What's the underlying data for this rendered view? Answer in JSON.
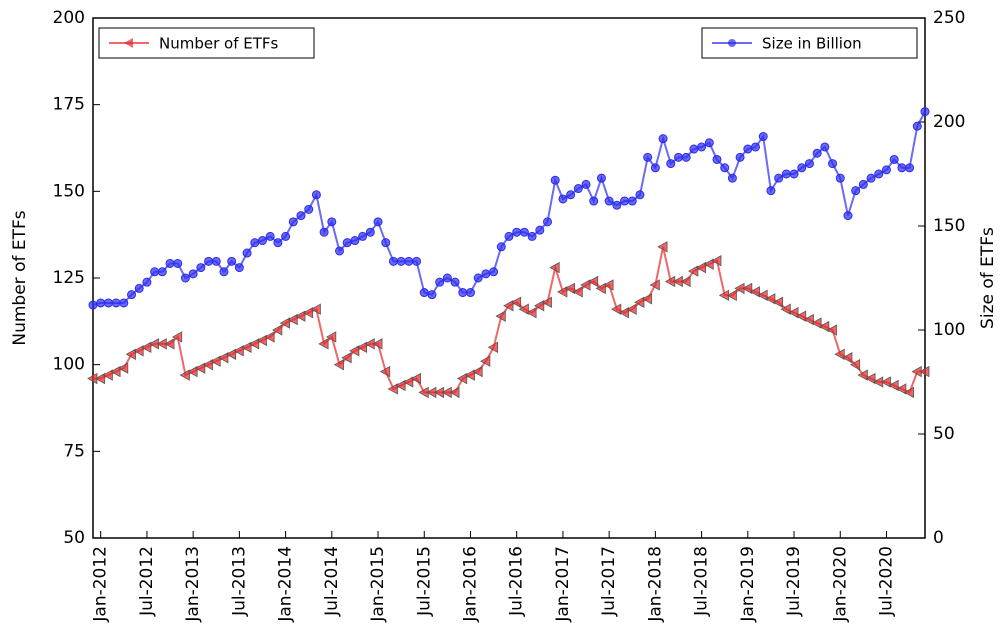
{
  "chart_data": {
    "type": "line",
    "x": [
      "2011-12",
      "2012-01",
      "2012-02",
      "2012-03",
      "2012-04",
      "2012-05",
      "2012-06",
      "2012-07",
      "2012-08",
      "2012-09",
      "2012-10",
      "2012-11",
      "2012-12",
      "2013-01",
      "2013-02",
      "2013-03",
      "2013-04",
      "2013-05",
      "2013-06",
      "2013-07",
      "2013-08",
      "2013-09",
      "2013-10",
      "2013-11",
      "2013-12",
      "2014-01",
      "2014-02",
      "2014-03",
      "2014-04",
      "2014-05",
      "2014-06",
      "2014-07",
      "2014-08",
      "2014-09",
      "2014-10",
      "2014-11",
      "2014-12",
      "2015-01",
      "2015-02",
      "2015-03",
      "2015-04",
      "2015-05",
      "2015-06",
      "2015-07",
      "2015-08",
      "2015-09",
      "2015-10",
      "2015-11",
      "2015-12",
      "2016-01",
      "2016-02",
      "2016-03",
      "2016-04",
      "2016-05",
      "2016-06",
      "2016-07",
      "2016-08",
      "2016-09",
      "2016-10",
      "2016-11",
      "2016-12",
      "2017-01",
      "2017-02",
      "2017-03",
      "2017-04",
      "2017-05",
      "2017-06",
      "2017-07",
      "2017-08",
      "2017-09",
      "2017-10",
      "2017-11",
      "2017-12",
      "2018-01",
      "2018-02",
      "2018-03",
      "2018-04",
      "2018-05",
      "2018-06",
      "2018-07",
      "2018-08",
      "2018-09",
      "2018-10",
      "2018-11",
      "2018-12",
      "2019-01",
      "2019-02",
      "2019-03",
      "2019-04",
      "2019-05",
      "2019-06",
      "2019-07",
      "2019-08",
      "2019-09",
      "2019-10",
      "2019-11",
      "2019-12",
      "2020-01",
      "2020-02",
      "2020-03",
      "2020-04",
      "2020-05",
      "2020-06",
      "2020-07",
      "2020-08",
      "2020-09",
      "2020-10",
      "2020-11",
      "2020-12"
    ],
    "xlim": [
      "2011-12",
      "2020-12"
    ],
    "xticks": [
      {
        "value": "2012-01",
        "label": "Jan-2012"
      },
      {
        "value": "2012-07",
        "label": "Jul-2012"
      },
      {
        "value": "2013-01",
        "label": "Jan-2013"
      },
      {
        "value": "2013-07",
        "label": "Jul-2013"
      },
      {
        "value": "2014-01",
        "label": "Jan-2014"
      },
      {
        "value": "2014-07",
        "label": "Jul-2014"
      },
      {
        "value": "2015-01",
        "label": "Jan-2015"
      },
      {
        "value": "2015-07",
        "label": "Jul-2015"
      },
      {
        "value": "2016-01",
        "label": "Jan-2016"
      },
      {
        "value": "2016-07",
        "label": "Jul-2016"
      },
      {
        "value": "2017-01",
        "label": "Jan-2017"
      },
      {
        "value": "2017-07",
        "label": "Jul-2017"
      },
      {
        "value": "2018-01",
        "label": "Jan-2018"
      },
      {
        "value": "2018-07",
        "label": "Jul-2018"
      },
      {
        "value": "2019-01",
        "label": "Jan-2019"
      },
      {
        "value": "2019-07",
        "label": "Jul-2019"
      },
      {
        "value": "2020-01",
        "label": "Jan-2020"
      },
      {
        "value": "2020-07",
        "label": "Jul-2020"
      }
    ],
    "y_label": "Number of ETFs",
    "y2_label": "Size of ETFs",
    "ylim": [
      50,
      200
    ],
    "yticks": [
      50,
      75,
      100,
      125,
      150,
      175,
      200
    ],
    "y2lim": [
      0,
      250
    ],
    "y2ticks": [
      0,
      50,
      100,
      150,
      200,
      250
    ],
    "series": [
      {
        "name": "Number of ETFs",
        "color": "#e8262a",
        "marker": "triangle-left",
        "legend_loc": "upper left",
        "values": [
          96,
          96,
          97,
          98,
          99,
          103,
          104,
          105,
          106,
          106,
          106,
          108,
          97,
          98,
          99,
          100,
          101,
          102,
          103,
          104,
          105,
          106,
          107,
          108,
          110,
          112,
          113,
          114,
          115,
          116,
          106,
          108,
          100,
          102,
          104,
          105,
          106,
          106,
          98,
          93,
          94,
          95,
          96,
          92,
          92,
          92,
          92,
          92,
          96,
          97,
          98,
          101,
          105,
          114,
          117,
          118,
          116,
          115,
          117,
          118,
          128,
          121,
          122,
          121,
          123,
          124,
          122,
          123,
          116,
          115,
          116,
          118,
          119,
          123,
          134,
          124,
          124,
          124,
          127,
          128,
          129,
          130,
          120,
          120,
          122,
          122,
          121,
          120,
          119,
          118,
          116,
          115,
          114,
          113,
          112,
          111,
          110,
          103,
          102,
          100,
          97,
          96,
          95,
          95,
          94,
          93,
          92,
          98,
          98
        ]
      },
      {
        "name": "Size in Billion",
        "color": "#2b2bef",
        "marker": "circle",
        "legend_loc": "upper right",
        "axis": "y2",
        "values": [
          112,
          113,
          113,
          113,
          113,
          117,
          120,
          123,
          128,
          128,
          132,
          132,
          125,
          127,
          130,
          133,
          133,
          128,
          133,
          130,
          137,
          142,
          143,
          145,
          142,
          145,
          152,
          155,
          158,
          165,
          147,
          152,
          138,
          142,
          143,
          145,
          147,
          152,
          142,
          133,
          133,
          133,
          133,
          118,
          117,
          123,
          125,
          123,
          118,
          118,
          125,
          127,
          128,
          140,
          145,
          147,
          147,
          145,
          148,
          152,
          172,
          163,
          165,
          168,
          170,
          162,
          173,
          162,
          160,
          162,
          162,
          165,
          183,
          178,
          192,
          180,
          183,
          183,
          187,
          188,
          190,
          182,
          178,
          173,
          183,
          187,
          188,
          193,
          167,
          173,
          175,
          175,
          178,
          180,
          185,
          188,
          180,
          173,
          155,
          167,
          170,
          173,
          175,
          177,
          182,
          178,
          178,
          198,
          205
        ]
      }
    ]
  }
}
